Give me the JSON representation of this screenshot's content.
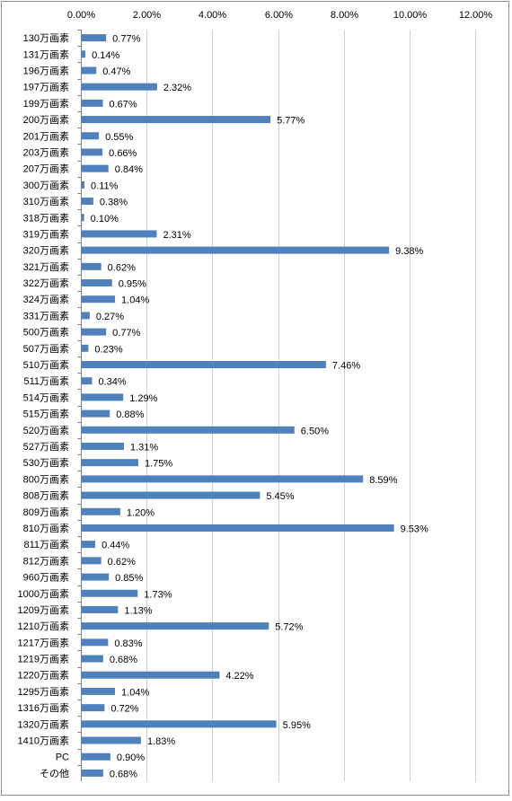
{
  "chart_data": {
    "type": "bar",
    "orientation": "horizontal",
    "title": "",
    "xlabel": "",
    "ylabel": "",
    "xlim": [
      0,
      12
    ],
    "x_ticks": [
      "0.00%",
      "2.00%",
      "4.00%",
      "6.00%",
      "8.00%",
      "10.00%",
      "12.00%"
    ],
    "x_tick_values": [
      0,
      2,
      4,
      6,
      8,
      10,
      12
    ],
    "x_axis_position": "top",
    "grid": true,
    "legend": "none",
    "bar_color": "#4f81bd",
    "categories": [
      "130万画素",
      "131万画素",
      "196万画素",
      "197万画素",
      "199万画素",
      "200万画素",
      "201万画素",
      "203万画素",
      "207万画素",
      "300万画素",
      "310万画素",
      "318万画素",
      "319万画素",
      "320万画素",
      "321万画素",
      "322万画素",
      "324万画素",
      "331万画素",
      "500万画素",
      "507万画素",
      "510万画素",
      "511万画素",
      "514万画素",
      "515万画素",
      "520万画素",
      "527万画素",
      "530万画素",
      "800万画素",
      "808万画素",
      "809万画素",
      "810万画素",
      "811万画素",
      "812万画素",
      "960万画素",
      "1000万画素",
      "1209万画素",
      "1210万画素",
      "1217万画素",
      "1219万画素",
      "1220万画素",
      "1295万画素",
      "1316万画素",
      "1320万画素",
      "1410万画素",
      "PC",
      "その他"
    ],
    "values": [
      0.77,
      0.14,
      0.47,
      2.32,
      0.67,
      5.77,
      0.55,
      0.66,
      0.84,
      0.11,
      0.38,
      0.1,
      2.31,
      9.38,
      0.62,
      0.95,
      1.04,
      0.27,
      0.77,
      0.23,
      7.46,
      0.34,
      1.29,
      0.88,
      6.5,
      1.31,
      1.75,
      8.59,
      5.45,
      1.2,
      9.53,
      0.44,
      0.62,
      0.85,
      1.73,
      1.13,
      5.72,
      0.83,
      0.68,
      4.22,
      1.04,
      0.72,
      5.95,
      1.83,
      0.9,
      0.68
    ],
    "data_labels": [
      "0.77%",
      "0.14%",
      "0.47%",
      "2.32%",
      "0.67%",
      "5.77%",
      "0.55%",
      "0.66%",
      "0.84%",
      "0.11%",
      "0.38%",
      "0.10%",
      "2.31%",
      "9.38%",
      "0.62%",
      "0.95%",
      "1.04%",
      "0.27%",
      "0.77%",
      "0.23%",
      "7.46%",
      "0.34%",
      "1.29%",
      "0.88%",
      "6.50%",
      "1.31%",
      "1.75%",
      "8.59%",
      "5.45%",
      "1.20%",
      "9.53%",
      "0.44%",
      "0.62%",
      "0.85%",
      "1.73%",
      "1.13%",
      "5.72%",
      "0.83%",
      "0.68%",
      "4.22%",
      "1.04%",
      "0.72%",
      "5.95%",
      "1.83%",
      "0.90%",
      "0.68%"
    ]
  }
}
